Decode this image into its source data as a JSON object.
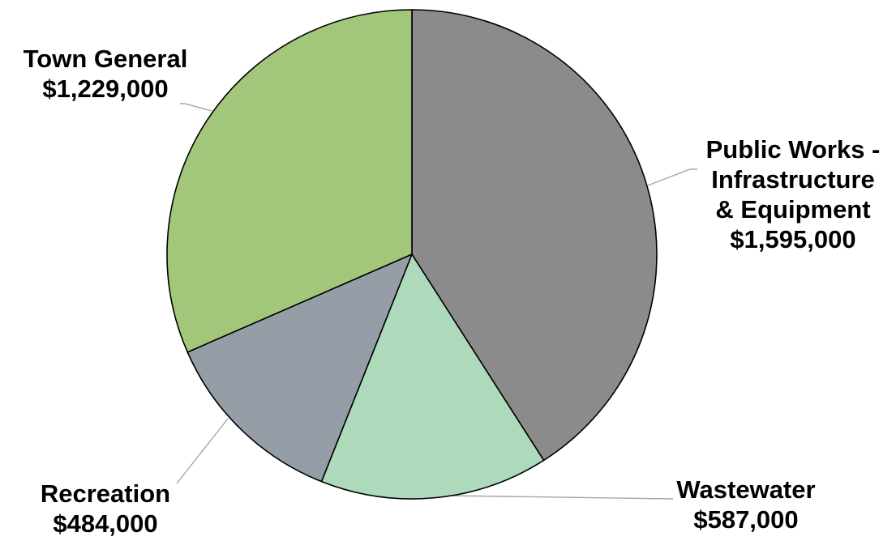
{
  "chart_data": {
    "type": "pie",
    "title": "",
    "slices": [
      {
        "label": "Public Works - Infrastructure & Equipment",
        "label_lines": [
          "Public Works -",
          "Infrastructure",
          "& Equipment"
        ],
        "value_text": "$1,595,000",
        "value": 1595000,
        "color": "#8b8b8b"
      },
      {
        "label": "Wastewater",
        "label_lines": [
          "Wastewater"
        ],
        "value_text": "$587,000",
        "value": 587000,
        "color": "#acdabb"
      },
      {
        "label": "Recreation",
        "label_lines": [
          "Recreation"
        ],
        "value_text": "$484,000",
        "value": 484000,
        "color": "#959ea7"
      },
      {
        "label": "Town General",
        "label_lines": [
          "Town General"
        ],
        "value_text": "$1,229,000",
        "value": 1229000,
        "color": "#a2c77b"
      }
    ]
  }
}
